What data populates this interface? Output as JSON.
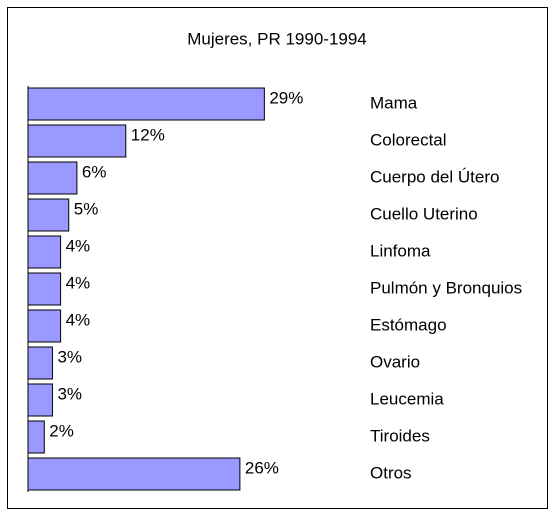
{
  "chart_data": {
    "type": "bar",
    "orientation": "horizontal",
    "title": "Mujeres, PR 1990-1994",
    "categories": [
      "Mama",
      "Colorectal",
      "Cuerpo del Útero",
      "Cuello Uterino",
      "Linfoma",
      "Pulmón y Bronquios",
      "Estómago",
      "Ovario",
      "Leucemia",
      "Tiroides",
      "Otros"
    ],
    "values": [
      29,
      12,
      6,
      5,
      4,
      4,
      4,
      3,
      3,
      2,
      26
    ],
    "value_labels": [
      "29%",
      "12%",
      "6%",
      "5%",
      "4%",
      "4%",
      "4%",
      "3%",
      "3%",
      "2%",
      "26%"
    ],
    "color": "#9999ff"
  }
}
